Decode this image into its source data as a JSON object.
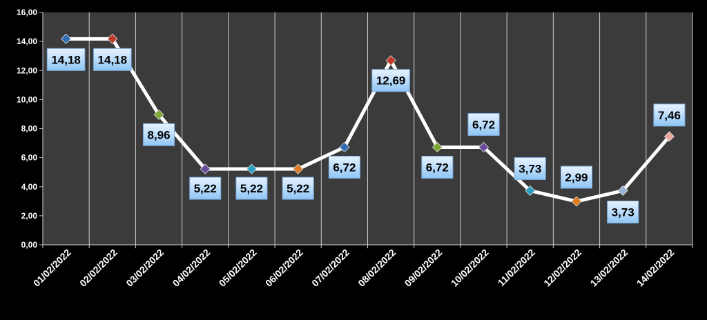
{
  "chart_data": {
    "type": "line",
    "categories": [
      "01/02/2022",
      "02/02/2022",
      "03/02/2022",
      "04/02/2022",
      "05/02/2022",
      "06/02/2022",
      "07/02/2022",
      "08/02/2022",
      "09/02/2022",
      "10/02/2022",
      "11/02/2022",
      "12/02/2022",
      "13/02/2022",
      "14/02/2022"
    ],
    "values": [
      14.18,
      14.18,
      8.96,
      5.22,
      5.22,
      5.22,
      6.72,
      12.69,
      6.72,
      6.72,
      3.73,
      2.99,
      3.73,
      7.46
    ],
    "value_labels": [
      "14,18",
      "14,18",
      "8,96",
      "5,22",
      "5,22",
      "5,22",
      "6,72",
      "12,69",
      "6,72",
      "6,72",
      "3,73",
      "2,99",
      "3,73",
      "7,46"
    ],
    "color": "#ffffff",
    "point_colors": [
      "#2f6db5",
      "#c0392b",
      "#7fa832",
      "#6a4c9c",
      "#2a9fbf",
      "#e07b22",
      "#2f6db5",
      "#c0392b",
      "#7fa832",
      "#6a4c9c",
      "#2a9fbf",
      "#e07b22",
      "#9ab3d8",
      "#e8a8a0"
    ],
    "ylim": [
      0,
      16
    ],
    "yticks": [
      {
        "value": 0,
        "label": "0,00"
      },
      {
        "value": 2,
        "label": "2,00"
      },
      {
        "value": 4,
        "label": "4,00"
      },
      {
        "value": 6,
        "label": "6,00"
      },
      {
        "value": 8,
        "label": "8,00"
      },
      {
        "value": 10,
        "label": "10,00"
      },
      {
        "value": 12,
        "label": "12,00"
      },
      {
        "value": 14,
        "label": "14,00"
      },
      {
        "value": 16,
        "label": "16,00"
      }
    ],
    "grid": true
  }
}
